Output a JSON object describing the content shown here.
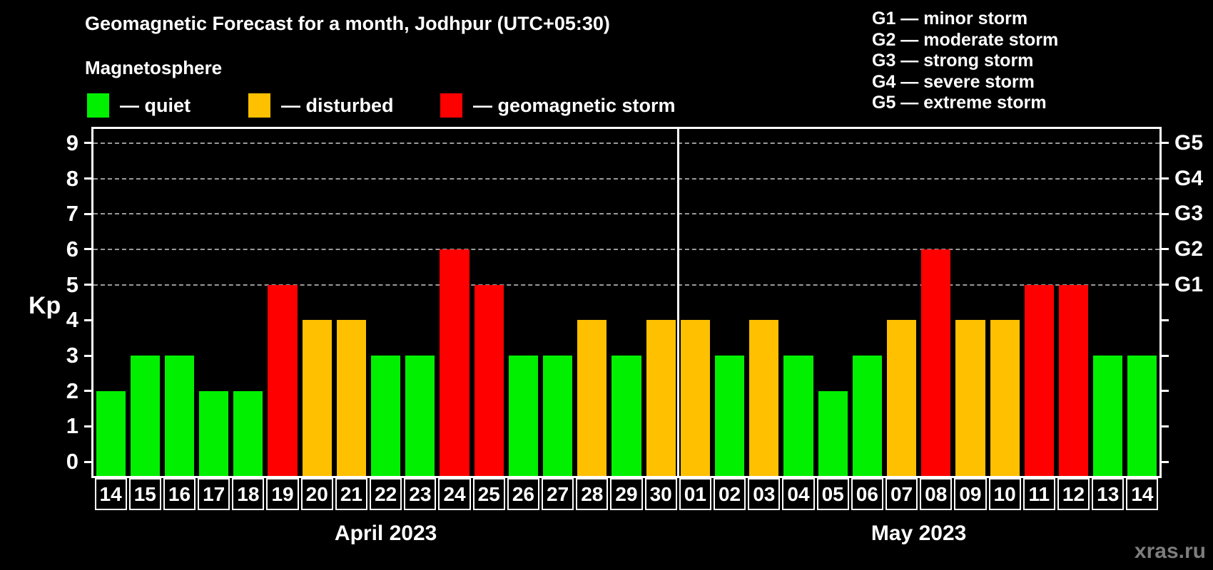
{
  "title": "Geomagnetic Forecast for a month, Jodhpur (UTC+05:30)",
  "subtitle": "Magnetosphere",
  "status_legend": [
    {
      "status": "quiet",
      "label": "— quiet",
      "color": "#00f000"
    },
    {
      "status": "disturbed",
      "label": "— disturbed",
      "color": "#ffc000"
    },
    {
      "status": "storm",
      "label": "— geomagnetic storm",
      "color": "#ff0000"
    }
  ],
  "g_scale_legend": [
    "G1 — minor storm",
    "G2 — moderate storm",
    "G3 — strong storm",
    "G4 — severe storm",
    "G5 — extreme storm"
  ],
  "watermark": "xras.ru",
  "chart_data": {
    "type": "bar",
    "title": "Geomagnetic Forecast for a month, Jodhpur (UTC+05:30)",
    "ylabel": "Kp",
    "ylim": [
      -0.4,
      9.4
    ],
    "yticks": [
      0,
      1,
      2,
      3,
      4,
      5,
      6,
      7,
      8,
      9
    ],
    "grid_kp_levels": [
      5,
      6,
      7,
      8,
      9
    ],
    "grid": "dashed horizontal at storm levels only",
    "legend_position": "top",
    "right_axis": [
      {
        "kp": 5,
        "label": "G1"
      },
      {
        "kp": 6,
        "label": "G2"
      },
      {
        "kp": 7,
        "label": "G3"
      },
      {
        "kp": 8,
        "label": "G4"
      },
      {
        "kp": 9,
        "label": "G5"
      }
    ],
    "color_by_status": {
      "quiet": "#00f000",
      "disturbed": "#ffc000",
      "storm": "#ff0000"
    },
    "months": [
      {
        "label": "April 2023",
        "days": [
          {
            "date": "14",
            "kp": 2,
            "status": "quiet"
          },
          {
            "date": "15",
            "kp": 3,
            "status": "quiet"
          },
          {
            "date": "16",
            "kp": 3,
            "status": "quiet"
          },
          {
            "date": "17",
            "kp": 2,
            "status": "quiet"
          },
          {
            "date": "18",
            "kp": 2,
            "status": "quiet"
          },
          {
            "date": "19",
            "kp": 5,
            "status": "storm"
          },
          {
            "date": "20",
            "kp": 4,
            "status": "disturbed"
          },
          {
            "date": "21",
            "kp": 4,
            "status": "disturbed"
          },
          {
            "date": "22",
            "kp": 3,
            "status": "quiet"
          },
          {
            "date": "23",
            "kp": 3,
            "status": "quiet"
          },
          {
            "date": "24",
            "kp": 6,
            "status": "storm"
          },
          {
            "date": "25",
            "kp": 5,
            "status": "storm"
          },
          {
            "date": "26",
            "kp": 3,
            "status": "quiet"
          },
          {
            "date": "27",
            "kp": 3,
            "status": "quiet"
          },
          {
            "date": "28",
            "kp": 4,
            "status": "disturbed"
          },
          {
            "date": "29",
            "kp": 3,
            "status": "quiet"
          },
          {
            "date": "30",
            "kp": 4,
            "status": "disturbed"
          }
        ]
      },
      {
        "label": "May 2023",
        "days": [
          {
            "date": "01",
            "kp": 4,
            "status": "disturbed"
          },
          {
            "date": "02",
            "kp": 3,
            "status": "quiet"
          },
          {
            "date": "03",
            "kp": 4,
            "status": "disturbed"
          },
          {
            "date": "04",
            "kp": 3,
            "status": "quiet"
          },
          {
            "date": "05",
            "kp": 2,
            "status": "quiet"
          },
          {
            "date": "06",
            "kp": 3,
            "status": "quiet"
          },
          {
            "date": "07",
            "kp": 4,
            "status": "disturbed"
          },
          {
            "date": "08",
            "kp": 6,
            "status": "storm"
          },
          {
            "date": "09",
            "kp": 4,
            "status": "disturbed"
          },
          {
            "date": "10",
            "kp": 4,
            "status": "disturbed"
          },
          {
            "date": "11",
            "kp": 5,
            "status": "storm"
          },
          {
            "date": "12",
            "kp": 5,
            "status": "storm"
          },
          {
            "date": "13",
            "kp": 3,
            "status": "quiet"
          },
          {
            "date": "14",
            "kp": 3,
            "status": "quiet"
          }
        ]
      }
    ]
  }
}
